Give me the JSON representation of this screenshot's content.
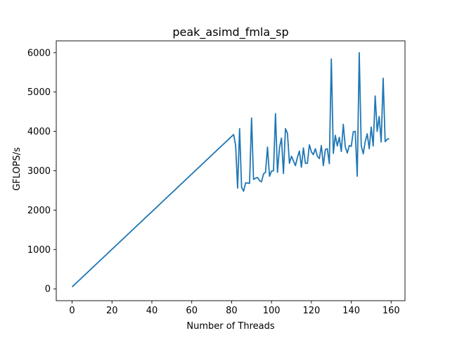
{
  "chart_data": {
    "type": "line",
    "title": "peak_asimd_fmla_sp",
    "xlabel": "Number of Threads",
    "ylabel": "GFLOPS/s",
    "xlim": [
      -7.95,
      166.95
    ],
    "ylim": [
      -300,
      6300
    ],
    "xticks": [
      0,
      20,
      40,
      60,
      80,
      100,
      120,
      140,
      160
    ],
    "yticks": [
      0,
      1000,
      2000,
      3000,
      4000,
      5000,
      6000
    ],
    "grid": false,
    "series": [
      {
        "color": "#1f77b4",
        "x": [
          0,
          81,
          82,
          83,
          84,
          85,
          86,
          87,
          88,
          89,
          90,
          91,
          92,
          93,
          94,
          95,
          96,
          97,
          98,
          99,
          100,
          101,
          102,
          103,
          104,
          105,
          106,
          107,
          108,
          109,
          110,
          111,
          112,
          113,
          114,
          115,
          116,
          117,
          118,
          119,
          120,
          121,
          122,
          123,
          124,
          125,
          126,
          127,
          128,
          129,
          130,
          131,
          132,
          133,
          134,
          135,
          136,
          137,
          138,
          139,
          140,
          141,
          142,
          143,
          144,
          145,
          146,
          147,
          148,
          149,
          150,
          151,
          152,
          153,
          154,
          155,
          156,
          157,
          158,
          159
        ],
        "y": [
          50,
          3920,
          3650,
          2560,
          4070,
          2580,
          2480,
          2690,
          2690,
          2680,
          4340,
          2780,
          2810,
          2830,
          2750,
          2720,
          2920,
          2960,
          3600,
          2860,
          2990,
          3000,
          4450,
          2960,
          3580,
          3830,
          2930,
          4070,
          3950,
          3190,
          3370,
          3250,
          3130,
          3340,
          3500,
          3090,
          3580,
          3190,
          3190,
          3660,
          3480,
          3410,
          3560,
          3370,
          3310,
          3640,
          3130,
          3540,
          3560,
          3180,
          5840,
          3440,
          3900,
          3630,
          3850,
          3490,
          4180,
          3610,
          3450,
          3640,
          3620,
          3990,
          4000,
          2860,
          6000,
          3640,
          3430,
          3740,
          3940,
          3560,
          4110,
          3630,
          4900,
          4000,
          4380,
          3730,
          5350,
          3740,
          3800,
          3820
        ]
      }
    ]
  }
}
